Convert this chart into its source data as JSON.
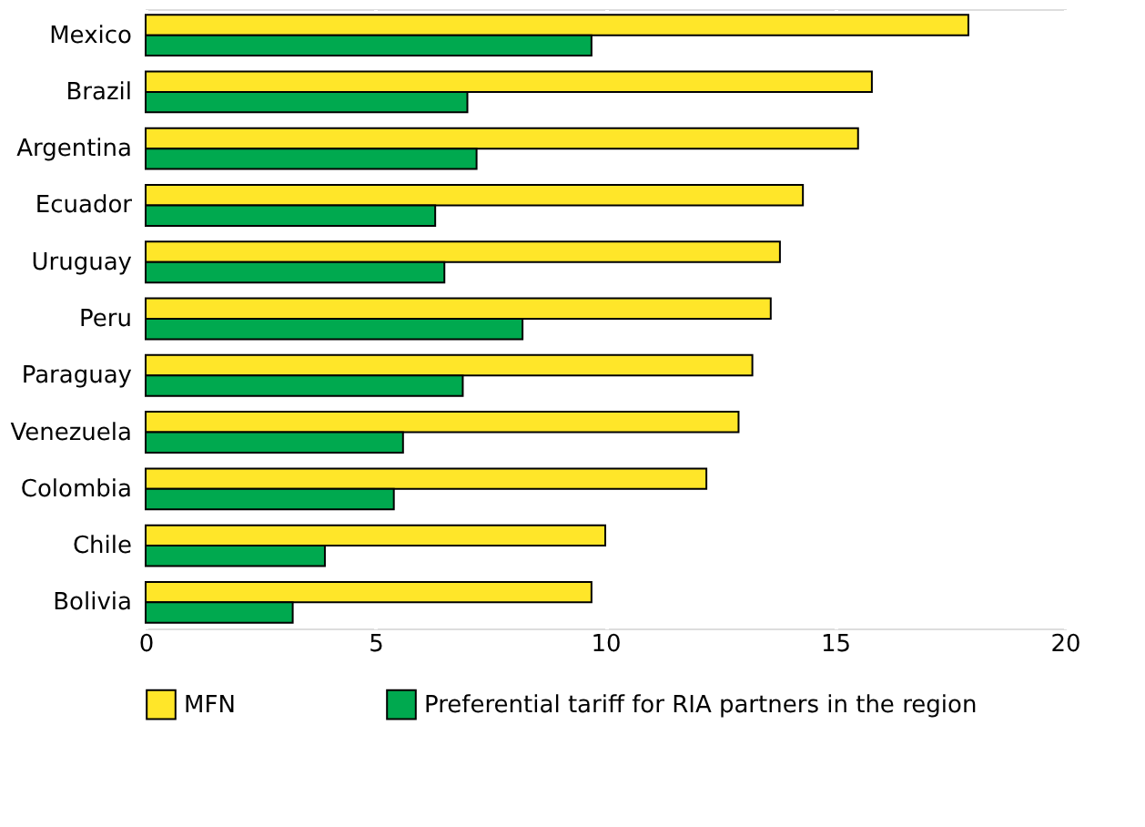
{
  "chart_data": {
    "type": "bar",
    "orientation": "horizontal",
    "categories": [
      "Mexico",
      "Brazil",
      "Argentina",
      "Ecuador",
      "Uruguay",
      "Peru",
      "Paraguay",
      "Venezuela",
      "Colombia",
      "Chile",
      "Bolivia"
    ],
    "series": [
      {
        "name": "MFN",
        "color": "#ffe629",
        "values": [
          17.9,
          15.8,
          15.5,
          14.3,
          13.8,
          13.6,
          13.2,
          12.9,
          12.2,
          10.0,
          9.7
        ]
      },
      {
        "name": "Preferential tariff for RIA partners in the region",
        "color": "#00a94f",
        "values": [
          9.7,
          7.0,
          7.2,
          6.3,
          6.5,
          8.2,
          6.9,
          5.6,
          5.4,
          3.9,
          3.2
        ]
      }
    ],
    "xlim": [
      0,
      20
    ],
    "xticks": [
      0,
      5,
      10,
      15,
      20
    ],
    "grid": "x",
    "legend": "bottom"
  }
}
